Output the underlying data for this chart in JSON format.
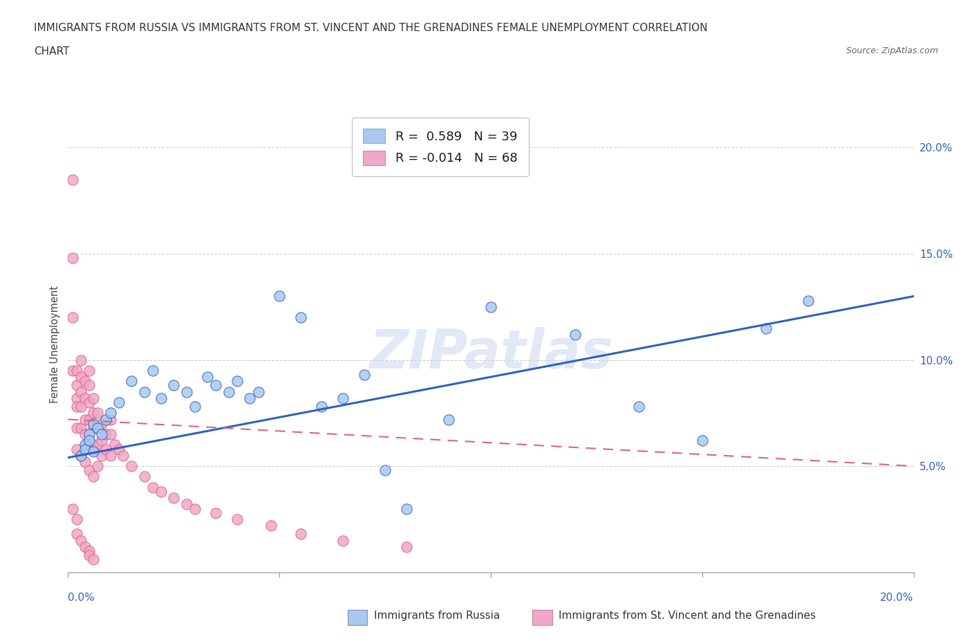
{
  "title_line1": "IMMIGRANTS FROM RUSSIA VS IMMIGRANTS FROM ST. VINCENT AND THE GRENADINES FEMALE UNEMPLOYMENT CORRELATION",
  "title_line2": "CHART",
  "source": "Source: ZipAtlas.com",
  "ylabel": "Female Unemployment",
  "russia_r": 0.589,
  "russia_n": 39,
  "stvincent_r": -0.014,
  "stvincent_n": 68,
  "russia_color": "#a8c8f0",
  "stvincent_color": "#f0a8c8",
  "russia_line_color": "#3060c0",
  "stvincent_line_color": "#e06080",
  "background_color": "#ffffff",
  "xlim": [
    0.0,
    0.2
  ],
  "ylim": [
    0.0,
    0.215
  ],
  "yticks": [
    0.05,
    0.1,
    0.15,
    0.2
  ],
  "xticks": [
    0.0,
    0.05,
    0.1,
    0.15,
    0.2
  ],
  "russia_scatter_x": [
    0.003,
    0.004,
    0.004,
    0.005,
    0.005,
    0.006,
    0.006,
    0.007,
    0.008,
    0.009,
    0.01,
    0.012,
    0.015,
    0.018,
    0.02,
    0.022,
    0.025,
    0.028,
    0.03,
    0.033,
    0.035,
    0.038,
    0.04,
    0.043,
    0.045,
    0.05,
    0.055,
    0.06,
    0.065,
    0.07,
    0.075,
    0.08,
    0.09,
    0.1,
    0.12,
    0.135,
    0.15,
    0.165,
    0.175
  ],
  "russia_scatter_y": [
    0.055,
    0.06,
    0.058,
    0.065,
    0.062,
    0.057,
    0.07,
    0.068,
    0.065,
    0.072,
    0.075,
    0.08,
    0.09,
    0.085,
    0.095,
    0.082,
    0.088,
    0.085,
    0.078,
    0.092,
    0.088,
    0.085,
    0.09,
    0.082,
    0.085,
    0.13,
    0.12,
    0.078,
    0.082,
    0.093,
    0.048,
    0.03,
    0.072,
    0.125,
    0.112,
    0.078,
    0.062,
    0.115,
    0.128
  ],
  "stvincent_scatter_x": [
    0.001,
    0.001,
    0.001,
    0.001,
    0.002,
    0.002,
    0.002,
    0.002,
    0.002,
    0.002,
    0.003,
    0.003,
    0.003,
    0.003,
    0.003,
    0.003,
    0.004,
    0.004,
    0.004,
    0.004,
    0.004,
    0.005,
    0.005,
    0.005,
    0.005,
    0.005,
    0.005,
    0.006,
    0.006,
    0.006,
    0.006,
    0.006,
    0.007,
    0.007,
    0.007,
    0.007,
    0.008,
    0.008,
    0.008,
    0.009,
    0.009,
    0.01,
    0.01,
    0.01,
    0.011,
    0.012,
    0.013,
    0.015,
    0.018,
    0.02,
    0.022,
    0.025,
    0.028,
    0.03,
    0.035,
    0.04,
    0.048,
    0.055,
    0.065,
    0.08,
    0.001,
    0.002,
    0.002,
    0.003,
    0.004,
    0.005,
    0.005,
    0.006
  ],
  "stvincent_scatter_y": [
    0.185,
    0.148,
    0.12,
    0.095,
    0.095,
    0.088,
    0.082,
    0.078,
    0.068,
    0.058,
    0.1,
    0.092,
    0.085,
    0.078,
    0.068,
    0.055,
    0.09,
    0.082,
    0.072,
    0.065,
    0.052,
    0.095,
    0.088,
    0.08,
    0.072,
    0.062,
    0.048,
    0.082,
    0.075,
    0.068,
    0.058,
    0.045,
    0.075,
    0.068,
    0.06,
    0.05,
    0.07,
    0.062,
    0.055,
    0.065,
    0.058,
    0.072,
    0.065,
    0.055,
    0.06,
    0.058,
    0.055,
    0.05,
    0.045,
    0.04,
    0.038,
    0.035,
    0.032,
    0.03,
    0.028,
    0.025,
    0.022,
    0.018,
    0.015,
    0.012,
    0.03,
    0.025,
    0.018,
    0.015,
    0.012,
    0.01,
    0.008,
    0.006
  ],
  "russia_trend_x": [
    0.0,
    0.2
  ],
  "russia_trend_y": [
    0.054,
    0.13
  ],
  "stvincent_trend_x": [
    0.0,
    0.2
  ],
  "stvincent_trend_y": [
    0.072,
    0.05
  ]
}
